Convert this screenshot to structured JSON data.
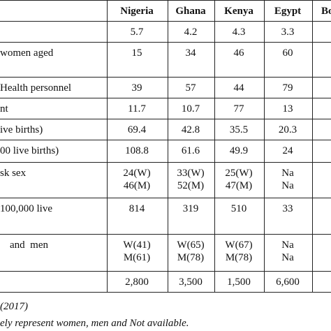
{
  "table": {
    "columns": [
      "Nigeria",
      "Ghana",
      "Kenya",
      "Egypt",
      "Bo"
    ],
    "rows": [
      {
        "cells": [
          "5.7",
          "4.2",
          "4.3",
          "3.3"
        ]
      },
      {
        "label": "women aged",
        "cells": [
          "15",
          "34",
          "46",
          "60"
        ]
      },
      {
        "label": "Health personnel",
        "cells": [
          "39",
          "57",
          "44",
          "79"
        ]
      },
      {
        "label": "nt",
        "cells": [
          "11.7",
          "10.7",
          "77",
          "13"
        ]
      },
      {
        "label": "ive births)",
        "cells": [
          "69.4",
          "42.8",
          "35.5",
          "20.3"
        ]
      },
      {
        "label": "00 live births)",
        "cells": [
          "108.8",
          "61.6",
          "49.9",
          "24"
        ]
      },
      {
        "label": "sk sex",
        "cells": [
          [
            "24(W)",
            "46(M)"
          ],
          [
            "33(W)",
            "52(M)"
          ],
          [
            "25(W)",
            "47(M)"
          ],
          [
            "Na",
            "Na"
          ]
        ]
      },
      {
        "label": "100,000 live",
        "cells": [
          "814",
          "319",
          "510",
          "33"
        ]
      },
      {
        "label": "and  men",
        "cells": [
          [
            "W(41)",
            "M(61)"
          ],
          [
            "W(65)",
            "M(78)"
          ],
          [
            "W(67)",
            "M(78)"
          ],
          [
            "Na",
            "Na"
          ]
        ]
      },
      {
        "cells": [
          "2,800",
          "3,500",
          "1,500",
          "6,600"
        ]
      }
    ]
  },
  "notes": [
    "(2017)",
    "ely represent women, men and Not available."
  ]
}
